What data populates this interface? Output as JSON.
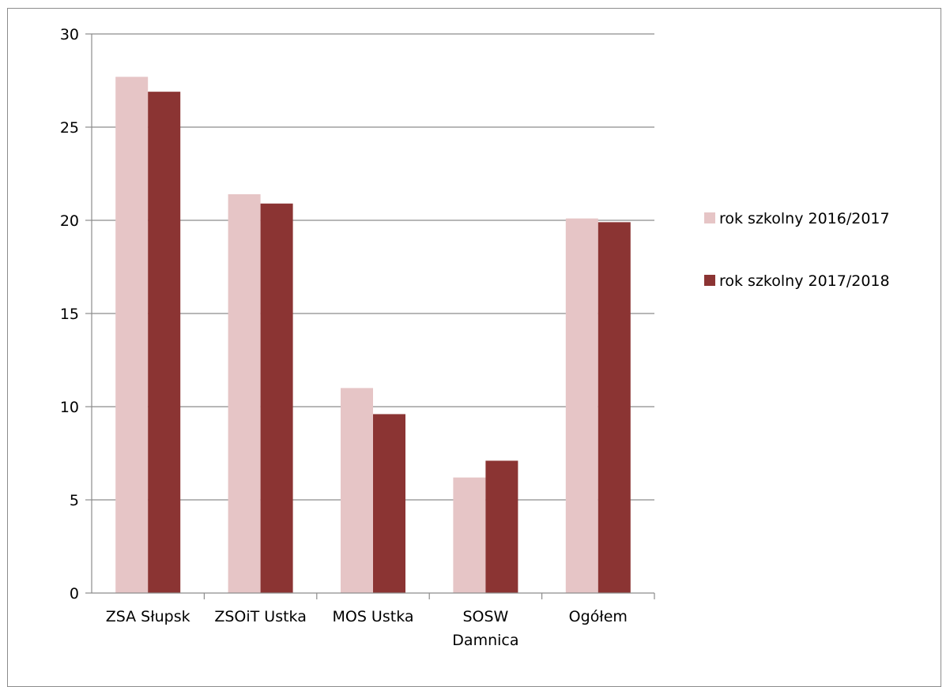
{
  "chart_data": {
    "type": "bar",
    "title": "",
    "xlabel": "",
    "ylabel": "",
    "categories": [
      [
        "ZSA Słupsk"
      ],
      [
        "ZSOiT Ustka"
      ],
      [
        "MOS Ustka"
      ],
      [
        "SOSW",
        "Damnica"
      ],
      [
        "Ogółem"
      ]
    ],
    "series": [
      {
        "name": "rok szkolny 2016/2017",
        "color": "#e6c5c6",
        "values": [
          27.7,
          21.4,
          11.0,
          6.2,
          20.1
        ]
      },
      {
        "name": "rok szkolny 2017/2018",
        "color": "#8b3433",
        "values": [
          26.9,
          20.9,
          9.6,
          7.1,
          19.9
        ]
      }
    ],
    "ylim": [
      0,
      30
    ],
    "yticks": [
      0,
      5,
      10,
      15,
      20,
      25,
      30
    ],
    "grid": true,
    "legend_position": "right"
  }
}
